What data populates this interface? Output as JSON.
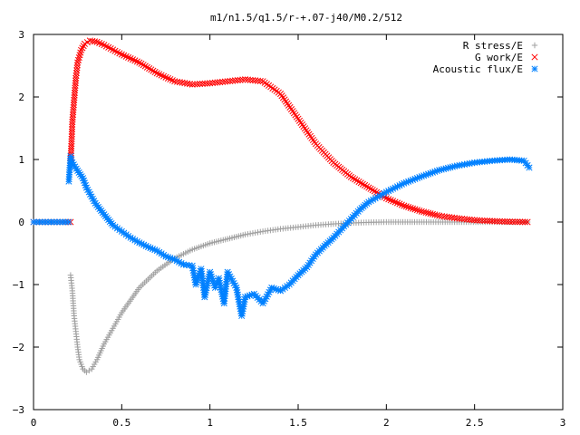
{
  "chart_data": {
    "type": "scatter",
    "title": "m1/n1.5/q1.5/r-+.07-j40/M0.2/512",
    "xlabel": "",
    "ylabel": "",
    "xlim": [
      0,
      3
    ],
    "ylim": [
      -3,
      3
    ],
    "xticks": [
      "0",
      "0.5",
      "1",
      "1.5",
      "2",
      "2.5",
      "3"
    ],
    "yticks": [
      "3",
      "2",
      "1",
      "0",
      "−1",
      "−2",
      "−3"
    ],
    "grid": false,
    "legend_position": "top-right",
    "series": [
      {
        "name": "R stress/E",
        "marker": "+",
        "color": "#a0a0a0",
        "points": [
          [
            0.21,
            -0.85
          ],
          [
            0.22,
            -1.1
          ],
          [
            0.225,
            -1.3
          ],
          [
            0.23,
            -1.5
          ],
          [
            0.24,
            -1.75
          ],
          [
            0.25,
            -2.0
          ],
          [
            0.26,
            -2.2
          ],
          [
            0.28,
            -2.35
          ],
          [
            0.3,
            -2.4
          ],
          [
            0.33,
            -2.35
          ],
          [
            0.36,
            -2.2
          ],
          [
            0.4,
            -1.95
          ],
          [
            0.45,
            -1.7
          ],
          [
            0.5,
            -1.45
          ],
          [
            0.6,
            -1.05
          ],
          [
            0.7,
            -0.78
          ],
          [
            0.8,
            -0.58
          ],
          [
            0.9,
            -0.44
          ],
          [
            1.0,
            -0.34
          ],
          [
            1.1,
            -0.27
          ],
          [
            1.2,
            -0.2
          ],
          [
            1.3,
            -0.15
          ],
          [
            1.4,
            -0.11
          ],
          [
            1.5,
            -0.08
          ],
          [
            1.6,
            -0.05
          ],
          [
            1.7,
            -0.03
          ],
          [
            1.8,
            -0.015
          ],
          [
            1.9,
            -0.005
          ],
          [
            2.0,
            0.0
          ],
          [
            2.2,
            0.0
          ],
          [
            2.4,
            0.0
          ],
          [
            2.6,
            0.0
          ],
          [
            2.8,
            0.0
          ]
        ]
      },
      {
        "name": "G work/E",
        "marker": "x",
        "color": "#ff0000",
        "points": [
          [
            0.0,
            0.0
          ],
          [
            0.05,
            0.0
          ],
          [
            0.1,
            0.0
          ],
          [
            0.15,
            0.0
          ],
          [
            0.21,
            0.0
          ],
          [
            0.21,
            0.95
          ],
          [
            0.215,
            1.25
          ],
          [
            0.22,
            1.6
          ],
          [
            0.23,
            1.95
          ],
          [
            0.24,
            2.3
          ],
          [
            0.25,
            2.55
          ],
          [
            0.27,
            2.75
          ],
          [
            0.29,
            2.85
          ],
          [
            0.32,
            2.9
          ],
          [
            0.36,
            2.88
          ],
          [
            0.4,
            2.83
          ],
          [
            0.5,
            2.68
          ],
          [
            0.6,
            2.55
          ],
          [
            0.7,
            2.38
          ],
          [
            0.8,
            2.25
          ],
          [
            0.9,
            2.2
          ],
          [
            1.0,
            2.22
          ],
          [
            1.1,
            2.25
          ],
          [
            1.2,
            2.28
          ],
          [
            1.3,
            2.25
          ],
          [
            1.4,
            2.05
          ],
          [
            1.5,
            1.65
          ],
          [
            1.6,
            1.25
          ],
          [
            1.7,
            0.95
          ],
          [
            1.8,
            0.72
          ],
          [
            1.9,
            0.55
          ],
          [
            2.0,
            0.38
          ],
          [
            2.1,
            0.26
          ],
          [
            2.2,
            0.17
          ],
          [
            2.3,
            0.1
          ],
          [
            2.4,
            0.06
          ],
          [
            2.5,
            0.03
          ],
          [
            2.6,
            0.015
          ],
          [
            2.7,
            0.005
          ],
          [
            2.8,
            0.0
          ]
        ]
      },
      {
        "name": "Acoustic flux/E",
        "marker": "*",
        "color": "#0080ff",
        "points": [
          [
            0.0,
            0.0
          ],
          [
            0.05,
            0.0
          ],
          [
            0.1,
            0.0
          ],
          [
            0.15,
            0.0
          ],
          [
            0.2,
            0.0
          ],
          [
            0.2,
            0.65
          ],
          [
            0.21,
            1.05
          ],
          [
            0.22,
            0.95
          ],
          [
            0.25,
            0.82
          ],
          [
            0.28,
            0.7
          ],
          [
            0.3,
            0.55
          ],
          [
            0.35,
            0.3
          ],
          [
            0.4,
            0.12
          ],
          [
            0.45,
            -0.05
          ],
          [
            0.5,
            -0.15
          ],
          [
            0.55,
            -0.25
          ],
          [
            0.6,
            -0.33
          ],
          [
            0.65,
            -0.4
          ],
          [
            0.7,
            -0.46
          ],
          [
            0.75,
            -0.55
          ],
          [
            0.8,
            -0.6
          ],
          [
            0.85,
            -0.68
          ],
          [
            0.9,
            -0.7
          ],
          [
            0.92,
            -1.0
          ],
          [
            0.95,
            -0.75
          ],
          [
            0.97,
            -1.2
          ],
          [
            1.0,
            -0.8
          ],
          [
            1.03,
            -1.05
          ],
          [
            1.05,
            -0.9
          ],
          [
            1.08,
            -1.3
          ],
          [
            1.1,
            -0.8
          ],
          [
            1.15,
            -1.05
          ],
          [
            1.18,
            -1.5
          ],
          [
            1.2,
            -1.2
          ],
          [
            1.25,
            -1.15
          ],
          [
            1.3,
            -1.3
          ],
          [
            1.35,
            -1.05
          ],
          [
            1.4,
            -1.1
          ],
          [
            1.45,
            -1.0
          ],
          [
            1.5,
            -0.85
          ],
          [
            1.55,
            -0.72
          ],
          [
            1.6,
            -0.52
          ],
          [
            1.65,
            -0.38
          ],
          [
            1.7,
            -0.25
          ],
          [
            1.75,
            -0.1
          ],
          [
            1.8,
            0.05
          ],
          [
            1.85,
            0.2
          ],
          [
            1.9,
            0.32
          ],
          [
            2.0,
            0.48
          ],
          [
            2.1,
            0.62
          ],
          [
            2.2,
            0.73
          ],
          [
            2.3,
            0.83
          ],
          [
            2.4,
            0.9
          ],
          [
            2.5,
            0.95
          ],
          [
            2.6,
            0.98
          ],
          [
            2.7,
            1.0
          ],
          [
            2.78,
            0.98
          ],
          [
            2.81,
            0.87
          ]
        ]
      }
    ]
  }
}
